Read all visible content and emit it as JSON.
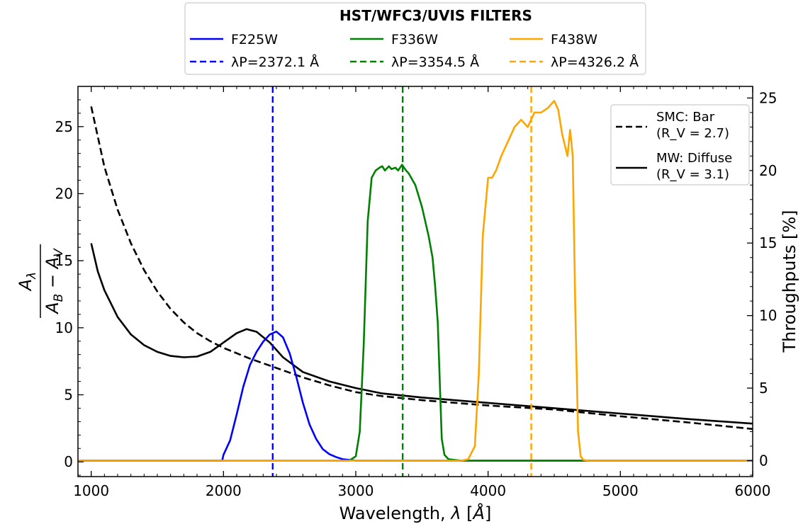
{
  "chart_data": {
    "type": "line",
    "title": "HST/WFC3/UVIS FILTERS",
    "xlabel": "Wavelength, λ [Å]",
    "ylabel_left": "Aλ / (AB − AV)",
    "ylabel_right": "Throughputs [%]",
    "xlim": [
      900,
      6000
    ],
    "ylim_left": [
      -1.1,
      28
    ],
    "ylim_right": [
      -1.1,
      25.8
    ],
    "x_ticks": [
      1000,
      2000,
      3000,
      4000,
      5000,
      6000
    ],
    "y_ticks_left": [
      0,
      5,
      10,
      15,
      20,
      25
    ],
    "y_ticks_right": [
      0,
      5,
      10,
      15,
      20,
      25
    ],
    "grid": false,
    "extinction_legend_placement": "top-right",
    "filter_legend_placement": "above plot",
    "extinction_curves": [
      {
        "name": "SMC: Bar",
        "param": "(R_V = 2.7)",
        "style": "dashed",
        "color": "#000000",
        "x": [
          1000,
          1100,
          1200,
          1300,
          1400,
          1500,
          1600,
          1700,
          1800,
          1900,
          2000,
          2200,
          2400,
          2600,
          2800,
          3000,
          3200,
          3500,
          4000,
          4500,
          5000,
          5500,
          6000
        ],
        "y": [
          26.5,
          22.0,
          18.8,
          16.3,
          14.3,
          12.7,
          11.4,
          10.4,
          9.6,
          9.0,
          8.5,
          7.7,
          7.0,
          6.3,
          5.7,
          5.2,
          4.9,
          4.6,
          4.2,
          3.9,
          3.4,
          2.95,
          2.45
        ]
      },
      {
        "name": "MW: Diffuse",
        "param": "(R_V = 3.1)",
        "style": "solid",
        "color": "#000000",
        "x": [
          1000,
          1050,
          1100,
          1200,
          1300,
          1400,
          1500,
          1600,
          1700,
          1800,
          1900,
          2000,
          2100,
          2175,
          2250,
          2350,
          2450,
          2600,
          2800,
          3000,
          3200,
          3500,
          4000,
          4500,
          5000,
          5500,
          6000
        ],
        "y": [
          16.3,
          14.2,
          12.8,
          10.8,
          9.5,
          8.7,
          8.2,
          7.9,
          7.8,
          7.85,
          8.2,
          8.9,
          9.6,
          9.9,
          9.7,
          8.9,
          7.8,
          6.7,
          6.0,
          5.5,
          5.1,
          4.8,
          4.4,
          4.0,
          3.6,
          3.2,
          2.85
        ]
      }
    ],
    "filters": [
      {
        "name": "F225W",
        "color": "#0000ff",
        "pivot_label": "λP=2372.1 Å",
        "pivot": 2372.1,
        "x": [
          900,
          1990,
          2000,
          2050,
          2100,
          2150,
          2200,
          2250,
          2300,
          2350,
          2400,
          2450,
          2500,
          2550,
          2600,
          2650,
          2700,
          2750,
          2800,
          2850,
          2900,
          2950,
          3000,
          6000
        ],
        "y": [
          0,
          0,
          0.4,
          1.4,
          3.2,
          5.1,
          6.6,
          7.5,
          8.2,
          8.7,
          8.9,
          8.5,
          7.4,
          5.8,
          4.0,
          2.5,
          1.5,
          0.8,
          0.45,
          0.25,
          0.1,
          0.05,
          0,
          0
        ]
      },
      {
        "name": "F336W",
        "color": "#008000",
        "pivot_label": "λP=3354.5 Å",
        "pivot": 3354.5,
        "x": [
          900,
          2950,
          3000,
          3030,
          3060,
          3090,
          3120,
          3150,
          3180,
          3200,
          3220,
          3250,
          3270,
          3300,
          3320,
          3350,
          3380,
          3400,
          3450,
          3500,
          3550,
          3580,
          3600,
          3620,
          3640,
          3650,
          3670,
          3700,
          3800,
          6000
        ],
        "y": [
          0,
          0,
          0.3,
          2.0,
          8.0,
          16.5,
          19.5,
          20.0,
          20.2,
          20.3,
          20.0,
          20.3,
          20.1,
          20.2,
          20.0,
          20.4,
          20.0,
          19.8,
          19.0,
          17.5,
          15.5,
          14.0,
          12.0,
          9.5,
          4.0,
          1.5,
          0.4,
          0.1,
          0,
          0
        ]
      },
      {
        "name": "F438W",
        "color": "#ffa500",
        "pivot_label": "λP=4326.2 Å",
        "pivot": 4326.2,
        "x": [
          900,
          3800,
          3850,
          3900,
          3930,
          3960,
          4000,
          4030,
          4060,
          4100,
          4150,
          4200,
          4250,
          4300,
          4350,
          4400,
          4450,
          4500,
          4530,
          4560,
          4600,
          4620,
          4640,
          4660,
          4680,
          4700,
          4720,
          4750,
          4800,
          6000
        ],
        "y": [
          0,
          0,
          0.1,
          1.0,
          6.0,
          15.5,
          19.5,
          19.5,
          20.0,
          21.0,
          22.0,
          23.0,
          23.5,
          23.0,
          24.0,
          24.0,
          24.3,
          24.8,
          24.2,
          22.5,
          21.0,
          22.8,
          21.0,
          10.0,
          2.0,
          0.3,
          0.05,
          0,
          0,
          0
        ]
      }
    ]
  }
}
